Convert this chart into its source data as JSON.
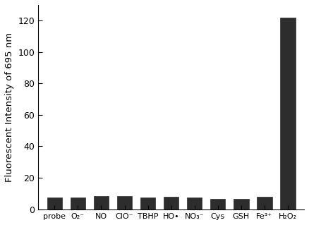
{
  "categories": [
    "probe",
    "O₂⁻",
    "NO",
    "ClO⁻",
    "TBHP",
    "HO•",
    "NO₃⁻",
    "Cys",
    "GSH",
    "Fe³⁺",
    "H₂O₂"
  ],
  "values": [
    7.5,
    7.5,
    8.5,
    8.5,
    7.5,
    8.0,
    7.5,
    6.5,
    6.5,
    8.0,
    122
  ],
  "bar_color": "#2d2d2d",
  "ylabel": "Fluorescent Intensity of 695 nm",
  "ylim": [
    0,
    130
  ],
  "yticks": [
    0,
    20,
    40,
    60,
    80,
    100,
    120
  ],
  "bar_width": 0.65,
  "background_color": "#ffffff",
  "edge_color": "#2d2d2d",
  "label_fontsize": 8.0,
  "ylabel_fontsize": 9.5,
  "ytick_fontsize": 9.0
}
